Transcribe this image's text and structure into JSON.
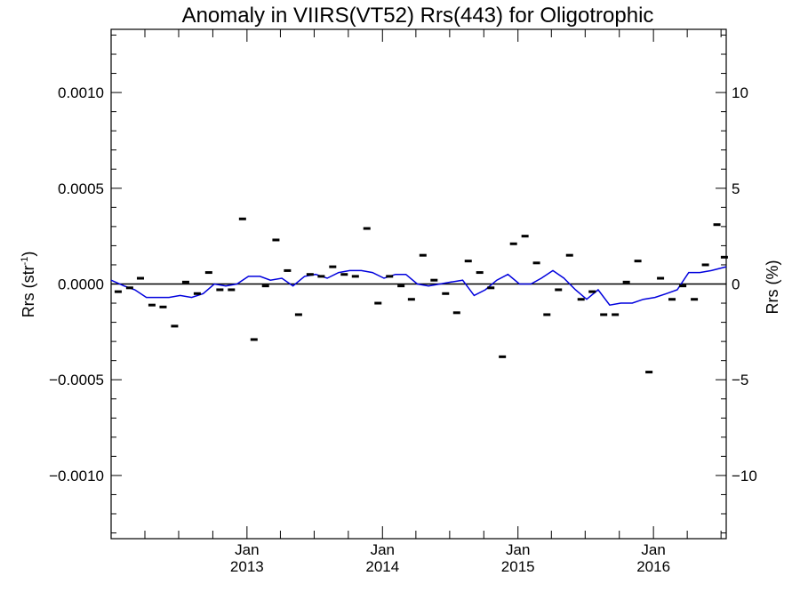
{
  "chart_data": {
    "type": "scatter",
    "title": "Anomaly in VIIRS(VT52) Rrs(443) for Oligotrophic",
    "ylabel": "Rrs (str",
    "ylabel_sup": "-1",
    "ylabel_close": ")",
    "y2label": "Rrs (%)",
    "xlim": [
      "2012-01-01",
      "2016-07-15"
    ],
    "ylim": [
      -0.00133,
      0.00133
    ],
    "y2lim": [
      -13.3,
      13.3
    ],
    "yticks": [
      -0.001,
      -0.0005,
      0.0,
      0.0005,
      0.001
    ],
    "ytick_labels": [
      "−0.0010",
      "−0.0005",
      "0.0000",
      "0.0005",
      "0.0010"
    ],
    "y2ticks": [
      -10,
      -5,
      0,
      5,
      10
    ],
    "y2tick_labels": [
      "−10",
      "−5",
      "0",
      "5",
      "10"
    ],
    "xticks": [
      {
        "date": "2013-01-01",
        "month": "Jan",
        "year": "2013"
      },
      {
        "date": "2014-01-01",
        "month": "Jan",
        "year": "2014"
      },
      {
        "date": "2015-01-01",
        "month": "Jan",
        "year": "2015"
      },
      {
        "date": "2016-01-01",
        "month": "Jan",
        "year": "2016"
      }
    ],
    "grid": false,
    "zero_line": true,
    "line_color": "#0000dd",
    "marker_color": "#000000",
    "series": [
      {
        "kind": "markers",
        "points": [
          [
            "2012-01-20",
            -4e-05
          ],
          [
            "2012-02-20",
            -2e-05
          ],
          [
            "2012-03-20",
            3e-05
          ],
          [
            "2012-04-20",
            -0.00011
          ],
          [
            "2012-05-20",
            -0.00012
          ],
          [
            "2012-06-20",
            -0.00022
          ],
          [
            "2012-07-20",
            1e-05
          ],
          [
            "2012-08-20",
            -5e-05
          ],
          [
            "2012-09-20",
            6e-05
          ],
          [
            "2012-10-20",
            -3e-05
          ],
          [
            "2012-11-20",
            -3e-05
          ],
          [
            "2012-12-20",
            0.00034
          ],
          [
            "2013-01-20",
            -0.00029
          ],
          [
            "2013-02-20",
            -1e-05
          ],
          [
            "2013-03-20",
            0.00023
          ],
          [
            "2013-04-20",
            7e-05
          ],
          [
            "2013-05-20",
            -0.00016
          ],
          [
            "2013-06-20",
            5e-05
          ],
          [
            "2013-07-20",
            4e-05
          ],
          [
            "2013-08-20",
            9e-05
          ],
          [
            "2013-09-20",
            5e-05
          ],
          [
            "2013-10-20",
            4e-05
          ],
          [
            "2013-11-20",
            0.00029
          ],
          [
            "2013-12-20",
            -0.0001
          ],
          [
            "2014-01-20",
            4e-05
          ],
          [
            "2014-02-20",
            -1e-05
          ],
          [
            "2014-03-20",
            -8e-05
          ],
          [
            "2014-04-20",
            0.00015
          ],
          [
            "2014-05-20",
            2e-05
          ],
          [
            "2014-06-20",
            -5e-05
          ],
          [
            "2014-07-20",
            -0.00015
          ],
          [
            "2014-08-20",
            0.00012
          ],
          [
            "2014-09-20",
            6e-05
          ],
          [
            "2014-10-20",
            -2e-05
          ],
          [
            "2014-11-20",
            -0.00038
          ],
          [
            "2014-12-20",
            0.00021
          ],
          [
            "2015-01-20",
            0.00025
          ],
          [
            "2015-02-20",
            0.00011
          ],
          [
            "2015-03-20",
            -0.00016
          ],
          [
            "2015-04-20",
            -3e-05
          ],
          [
            "2015-05-20",
            0.00015
          ],
          [
            "2015-06-20",
            -8e-05
          ],
          [
            "2015-07-20",
            -4e-05
          ],
          [
            "2015-08-20",
            -0.00016
          ],
          [
            "2015-09-20",
            -0.00016
          ],
          [
            "2015-10-20",
            1e-05
          ],
          [
            "2015-11-20",
            0.00012
          ],
          [
            "2015-12-20",
            -0.00046
          ],
          [
            "2016-01-20",
            3e-05
          ],
          [
            "2016-02-20",
            -8e-05
          ],
          [
            "2016-03-20",
            -1e-05
          ],
          [
            "2016-04-20",
            -8e-05
          ],
          [
            "2016-05-20",
            0.0001
          ],
          [
            "2016-06-20",
            0.00031
          ],
          [
            "2016-07-10",
            0.00014
          ]
        ]
      },
      {
        "kind": "line",
        "points": [
          [
            "2012-01-01",
            2e-05
          ],
          [
            "2012-02-05",
            -1e-05
          ],
          [
            "2012-03-05",
            -3e-05
          ],
          [
            "2012-04-05",
            -7e-05
          ],
          [
            "2012-05-05",
            -7e-05
          ],
          [
            "2012-06-05",
            -7e-05
          ],
          [
            "2012-07-05",
            -6e-05
          ],
          [
            "2012-08-05",
            -7e-05
          ],
          [
            "2012-09-05",
            -5e-05
          ],
          [
            "2012-10-05",
            0.0
          ],
          [
            "2012-11-05",
            -1e-05
          ],
          [
            "2012-12-05",
            0.0
          ],
          [
            "2013-01-05",
            4e-05
          ],
          [
            "2013-02-05",
            4e-05
          ],
          [
            "2013-03-05",
            2e-05
          ],
          [
            "2013-04-05",
            3e-05
          ],
          [
            "2013-05-05",
            -1e-05
          ],
          [
            "2013-06-05",
            4e-05
          ],
          [
            "2013-07-05",
            5e-05
          ],
          [
            "2013-08-05",
            3e-05
          ],
          [
            "2013-09-05",
            6e-05
          ],
          [
            "2013-10-05",
            7e-05
          ],
          [
            "2013-11-05",
            7e-05
          ],
          [
            "2013-12-05",
            6e-05
          ],
          [
            "2014-01-05",
            3e-05
          ],
          [
            "2014-02-05",
            5e-05
          ],
          [
            "2014-03-05",
            5e-05
          ],
          [
            "2014-04-05",
            0.0
          ],
          [
            "2014-05-05",
            -1e-05
          ],
          [
            "2014-06-05",
            0.0
          ],
          [
            "2014-07-05",
            1e-05
          ],
          [
            "2014-08-05",
            2e-05
          ],
          [
            "2014-09-05",
            -6e-05
          ],
          [
            "2014-10-05",
            -3e-05
          ],
          [
            "2014-11-05",
            2e-05
          ],
          [
            "2014-12-05",
            5e-05
          ],
          [
            "2015-01-05",
            0.0
          ],
          [
            "2015-02-05",
            0.0
          ],
          [
            "2015-03-05",
            3e-05
          ],
          [
            "2015-04-05",
            7e-05
          ],
          [
            "2015-05-05",
            3e-05
          ],
          [
            "2015-06-05",
            -3e-05
          ],
          [
            "2015-07-05",
            -8e-05
          ],
          [
            "2015-08-05",
            -3e-05
          ],
          [
            "2015-09-05",
            -0.00011
          ],
          [
            "2015-10-05",
            -0.0001
          ],
          [
            "2015-11-05",
            -0.0001
          ],
          [
            "2015-12-05",
            -8e-05
          ],
          [
            "2016-01-05",
            -7e-05
          ],
          [
            "2016-02-05",
            -5e-05
          ],
          [
            "2016-03-05",
            -3e-05
          ],
          [
            "2016-04-05",
            6e-05
          ],
          [
            "2016-05-05",
            6e-05
          ],
          [
            "2016-06-05",
            7e-05
          ],
          [
            "2016-07-15",
            9e-05
          ]
        ]
      }
    ]
  }
}
